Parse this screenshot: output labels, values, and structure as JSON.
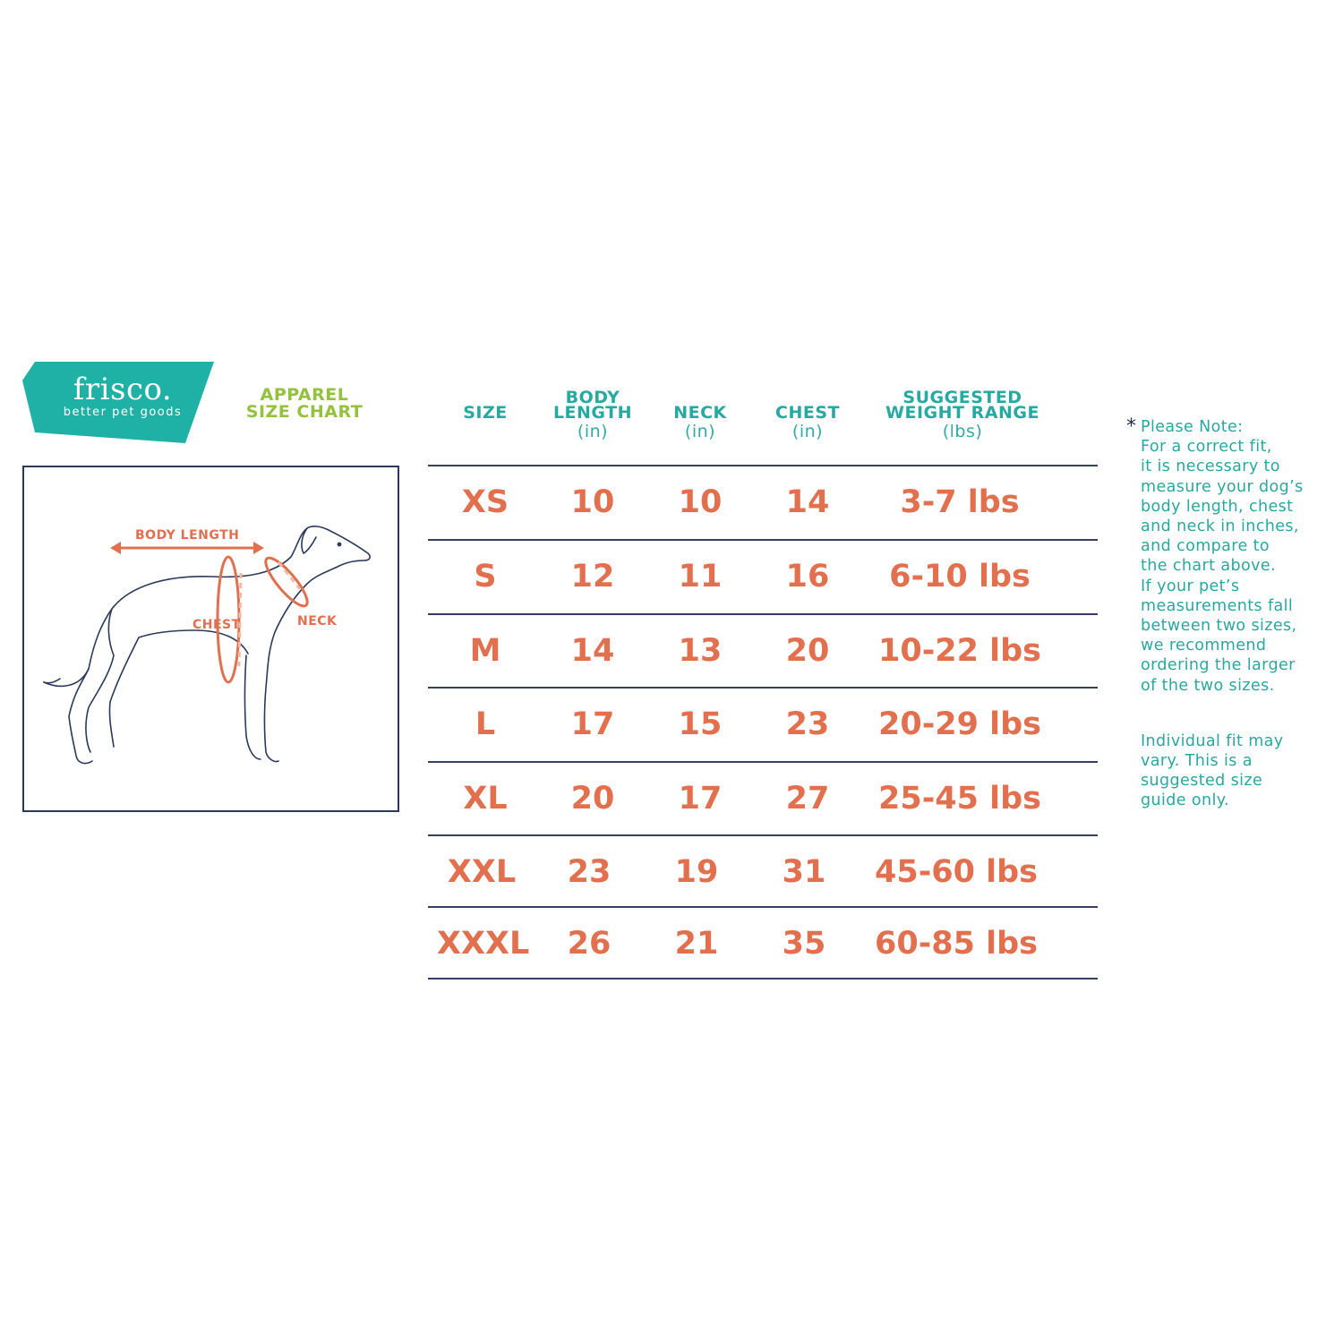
{
  "brand": {
    "name": "frisco.",
    "tagline": "better pet goods",
    "color": "#1fb1a6"
  },
  "title": {
    "line1": "APPAREL",
    "line2": "SIZE  CHART",
    "color": "#94c13e"
  },
  "diagram": {
    "labels": {
      "body_length": "BODY LENGTH",
      "chest": "CHEST",
      "neck": "NECK"
    },
    "accent_color": "#e0704f",
    "outline_color": "#2b3a5a"
  },
  "table": {
    "headers": [
      {
        "title": "SIZE",
        "unit": ""
      },
      {
        "title": "BODY LENGTH",
        "unit": "(in)"
      },
      {
        "title": "NECK",
        "unit": "(in)"
      },
      {
        "title": "CHEST",
        "unit": "(in)"
      },
      {
        "title": "SUGGESTED WEIGHT RANGE",
        "unit": "(lbs)"
      }
    ],
    "header_lines": {
      "body": [
        "BODY",
        "LENGTH"
      ],
      "weight": [
        "SUGGESTED",
        "WEIGHT RANGE"
      ]
    },
    "rows": [
      {
        "size": "XS",
        "body_length": "10",
        "neck": "10",
        "chest": "14",
        "weight": "3-7 lbs"
      },
      {
        "size": "S",
        "body_length": "12",
        "neck": "11",
        "chest": "16",
        "weight": "6-10 lbs"
      },
      {
        "size": "M",
        "body_length": "14",
        "neck": "13",
        "chest": "20",
        "weight": "10-22 lbs"
      },
      {
        "size": "L",
        "body_length": "17",
        "neck": "15",
        "chest": "23",
        "weight": "20-29 lbs"
      },
      {
        "size": "XL",
        "body_length": "20",
        "neck": "17",
        "chest": "27",
        "weight": "25-45 lbs"
      },
      {
        "size": "XXL",
        "body_length": "23",
        "neck": "19",
        "chest": "31",
        "weight": "45-60 lbs"
      },
      {
        "size": "XXXL",
        "body_length": "26",
        "neck": "21",
        "chest": "35",
        "weight": "60-85 lbs"
      }
    ],
    "header_color": "#25a9a0",
    "value_color": "#e2704f",
    "rule_color": "#35405e"
  },
  "note": {
    "asterisk": "*",
    "lines": [
      "Please Note:",
      "For a correct fit,",
      "it is necessary to",
      "measure your dog’s",
      "body length, chest",
      "and neck in inches,",
      "and compare to",
      "the chart above.",
      "If your pet’s",
      "measurements fall",
      "between two sizes,",
      "we recommend",
      "ordering the larger",
      "of the two sizes."
    ],
    "disclaimer_lines": [
      "Individual fit may",
      "vary. This is a",
      "suggested size",
      "guide only."
    ]
  }
}
